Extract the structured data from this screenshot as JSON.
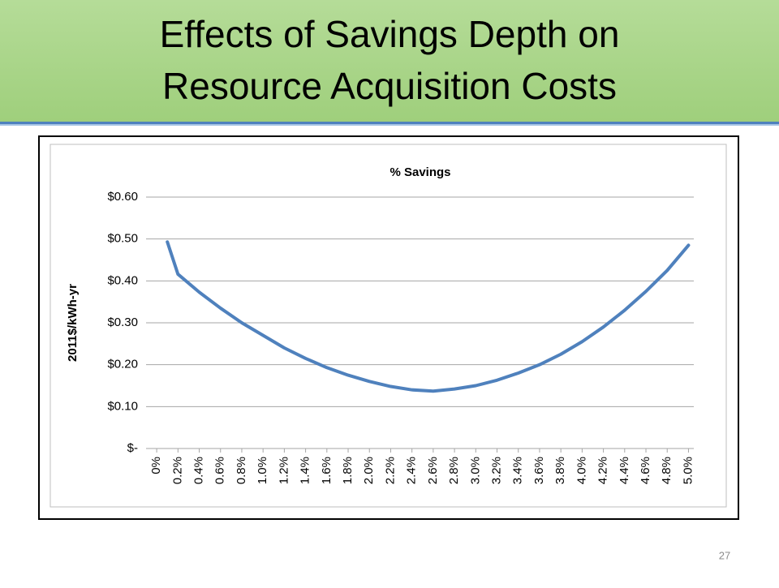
{
  "slide": {
    "title_lines": [
      "Effects of Savings Depth on",
      "Resource Acquisition Costs"
    ],
    "page_number": "27"
  },
  "chart_data": {
    "type": "line",
    "title": "% Savings",
    "y_label": "2011$/kWh-yr",
    "x": [
      0.1,
      0.2,
      0.4,
      0.6,
      0.8,
      1.0,
      1.2,
      1.4,
      1.6,
      1.8,
      2.0,
      2.2,
      2.4,
      2.6,
      2.8,
      3.0,
      3.2,
      3.4,
      3.6,
      3.8,
      4.0,
      4.2,
      4.4,
      4.6,
      4.8,
      5.0
    ],
    "series": [
      {
        "name": "% Savings",
        "color": "#4f81bd",
        "values": [
          0.493,
          0.416,
          0.373,
          0.335,
          0.3,
          0.27,
          0.24,
          0.215,
          0.193,
          0.175,
          0.16,
          0.148,
          0.14,
          0.137,
          0.142,
          0.15,
          0.163,
          0.18,
          0.2,
          0.225,
          0.255,
          0.29,
          0.33,
          0.375,
          0.425,
          0.485
        ]
      }
    ],
    "xlim": [
      -0.1,
      5.05
    ],
    "xticks": [
      {
        "value": 0,
        "label": "0%"
      },
      {
        "value": 0.2,
        "label": "0.2%"
      },
      {
        "value": 0.4,
        "label": "0.4%"
      },
      {
        "value": 0.6,
        "label": "0.6%"
      },
      {
        "value": 0.8,
        "label": "0.8%"
      },
      {
        "value": 1.0,
        "label": "1.0%"
      },
      {
        "value": 1.2,
        "label": "1.2%"
      },
      {
        "value": 1.4,
        "label": "1.4%"
      },
      {
        "value": 1.6,
        "label": "1.6%"
      },
      {
        "value": 1.8,
        "label": "1.8%"
      },
      {
        "value": 2.0,
        "label": "2.0%"
      },
      {
        "value": 2.2,
        "label": "2.2%"
      },
      {
        "value": 2.4,
        "label": "2.4%"
      },
      {
        "value": 2.6,
        "label": "2.6%"
      },
      {
        "value": 2.8,
        "label": "2.8%"
      },
      {
        "value": 3.0,
        "label": "3.0%"
      },
      {
        "value": 3.2,
        "label": "3.2%"
      },
      {
        "value": 3.4,
        "label": "3.4%"
      },
      {
        "value": 3.6,
        "label": "3.6%"
      },
      {
        "value": 3.8,
        "label": "3.8%"
      },
      {
        "value": 4.0,
        "label": "4.0%"
      },
      {
        "value": 4.2,
        "label": "4.2%"
      },
      {
        "value": 4.4,
        "label": "4.4%"
      },
      {
        "value": 4.6,
        "label": "4.6%"
      },
      {
        "value": 4.8,
        "label": "4.8%"
      },
      {
        "value": 5.0,
        "label": "5.0%"
      }
    ],
    "ylim": [
      0,
      0.6
    ],
    "yticks": [
      {
        "value": 0,
        "label": "$-"
      },
      {
        "value": 0.1,
        "label": "$0.10"
      },
      {
        "value": 0.2,
        "label": "$0.20"
      },
      {
        "value": 0.3,
        "label": "$0.30"
      },
      {
        "value": 0.4,
        "label": "$0.40"
      },
      {
        "value": 0.5,
        "label": "$0.50"
      },
      {
        "value": 0.6,
        "label": "$0.60"
      }
    ],
    "grid": true
  }
}
